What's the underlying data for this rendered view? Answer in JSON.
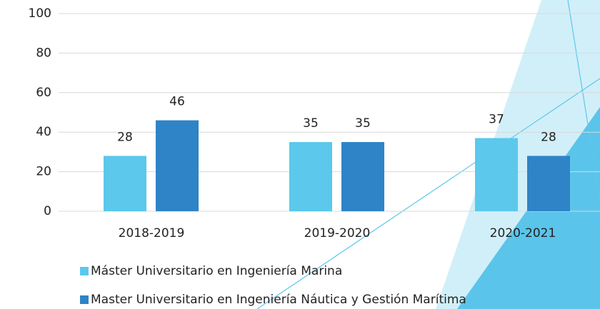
{
  "chart_data": {
    "type": "bar",
    "categories": [
      "2018-2019",
      "2019-2020",
      "2020-2021"
    ],
    "series": [
      {
        "name": "Máster Universitario en Ingeniería Marina",
        "color": "#5bc8ec",
        "values": [
          28,
          35,
          37
        ]
      },
      {
        "name": "Master Universitario en Ingeniería Náutica y Gestión Marítima",
        "color": "#2e84c6",
        "values": [
          46,
          35,
          28
        ]
      }
    ],
    "ylim": [
      0,
      100
    ],
    "yticks": [
      0,
      20,
      40,
      60,
      80,
      100
    ],
    "grid": true,
    "legend": "bottom"
  }
}
